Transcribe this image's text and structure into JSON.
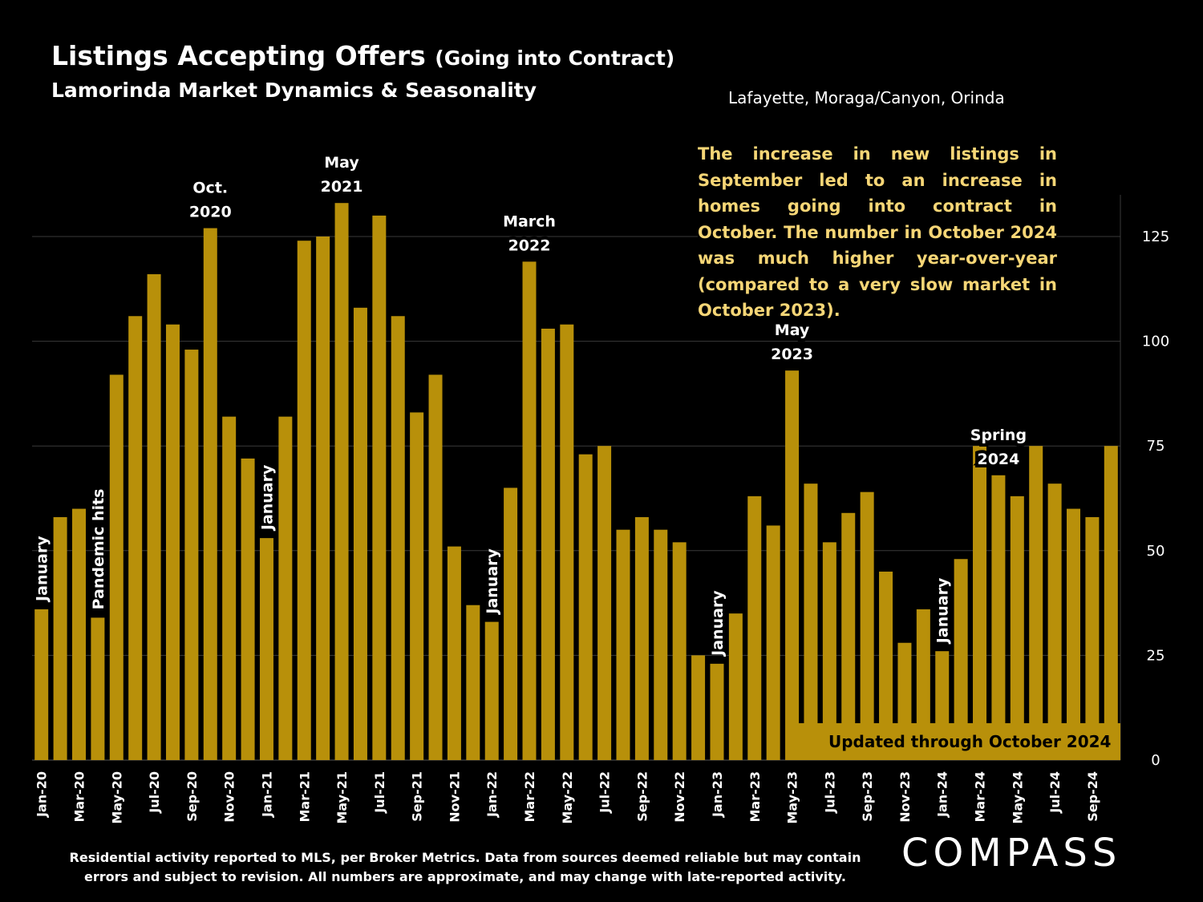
{
  "header": {
    "title": "Listings Accepting Offers",
    "title_suffix": "(Going into Contract)",
    "subtitle": "Lamorinda Market Dynamics & Seasonality",
    "region": "Lafayette, Moraga/Canyon, Orinda"
  },
  "commentary": "The increase in new listings in September led to an increase in homes going into contract in October. The number in October 2024 was much higher year-over-year (compared to a very slow market in October 2023).",
  "updated_note": "Updated through October 2024",
  "footnote_lines": [
    "Residential activity reported to MLS, per Broker Metrics. Data from sources deemed reliable but may contain",
    "errors and subject to revision. All numbers are approximate, and may change with late-reported activity."
  ],
  "logo": "COMPASS",
  "colors": {
    "bar": "#b8900a",
    "background": "#000000",
    "commentary": "#f6d676",
    "grid": "#3a3a3a"
  },
  "chart_data": {
    "type": "bar",
    "x": [
      "Jan-20",
      "Feb-20",
      "Mar-20",
      "Apr-20",
      "May-20",
      "Jun-20",
      "Jul-20",
      "Aug-20",
      "Sep-20",
      "Oct-20",
      "Nov-20",
      "Dec-20",
      "Jan-21",
      "Feb-21",
      "Mar-21",
      "Apr-21",
      "May-21",
      "Jun-21",
      "Jul-21",
      "Aug-21",
      "Sep-21",
      "Oct-21",
      "Nov-21",
      "Dec-21",
      "Jan-22",
      "Feb-22",
      "Mar-22",
      "Apr-22",
      "May-22",
      "Jun-22",
      "Jul-22",
      "Aug-22",
      "Sep-22",
      "Oct-22",
      "Nov-22",
      "Dec-22",
      "Jan-23",
      "Feb-23",
      "Mar-23",
      "Apr-23",
      "May-23",
      "Jun-23",
      "Jul-23",
      "Aug-23",
      "Sep-23",
      "Oct-23",
      "Nov-23",
      "Dec-23",
      "Jan-24",
      "Feb-24",
      "Mar-24",
      "Apr-24",
      "May-24",
      "Jun-24",
      "Jul-24",
      "Aug-24",
      "Sep-24",
      "Oct-24"
    ],
    "values": [
      36,
      58,
      60,
      34,
      92,
      106,
      116,
      104,
      98,
      127,
      82,
      72,
      53,
      82,
      124,
      125,
      133,
      108,
      130,
      106,
      83,
      92,
      51,
      37,
      33,
      65,
      119,
      103,
      104,
      73,
      75,
      55,
      58,
      55,
      52,
      25,
      23,
      35,
      63,
      56,
      93,
      66,
      52,
      59,
      64,
      45,
      28,
      36,
      26,
      48,
      75,
      68,
      63,
      75,
      66,
      60,
      58,
      75
    ],
    "x_tick_labels": [
      "Jan-20",
      "Mar-20",
      "May-20",
      "Jul-20",
      "Sep-20",
      "Nov-20",
      "Jan-21",
      "Mar-21",
      "May-21",
      "Jul-21",
      "Sep-21",
      "Nov-21",
      "Jan-22",
      "Mar-22",
      "May-22",
      "Jul-22",
      "Sep-22",
      "Nov-22",
      "Jan-23",
      "Mar-23",
      "May-23",
      "Jul-23",
      "Sep-23",
      "Nov-23",
      "Jan-24",
      "Mar-24",
      "May-24",
      "Jul-24",
      "Sep-24"
    ],
    "y_ticks": [
      0,
      25,
      50,
      75,
      100,
      125
    ],
    "ylim": [
      0,
      135
    ],
    "y_axis_position": "right",
    "grid": true,
    "annotations": [
      {
        "text": [
          "January"
        ],
        "x": "Jan-20",
        "orientation": "vertical"
      },
      {
        "text": [
          "Pandemic hits"
        ],
        "x": "Apr-20",
        "orientation": "vertical"
      },
      {
        "text": [
          "Oct.",
          "2020"
        ],
        "x": "Oct-20",
        "orientation": "horizontal"
      },
      {
        "text": [
          "January"
        ],
        "x": "Jan-21",
        "orientation": "vertical"
      },
      {
        "text": [
          "May",
          "2021"
        ],
        "x": "May-21",
        "orientation": "horizontal"
      },
      {
        "text": [
          "January"
        ],
        "x": "Jan-22",
        "orientation": "vertical"
      },
      {
        "text": [
          "March",
          "2022"
        ],
        "x": "Mar-22",
        "orientation": "horizontal"
      },
      {
        "text": [
          "January"
        ],
        "x": "Jan-23",
        "orientation": "vertical"
      },
      {
        "text": [
          "May",
          "2023"
        ],
        "x": "May-23",
        "orientation": "horizontal"
      },
      {
        "text": [
          "January"
        ],
        "x": "Jan-24",
        "orientation": "vertical"
      },
      {
        "text": [
          "Spring",
          "2024"
        ],
        "x": "Apr-24",
        "orientation": "horizontal"
      }
    ]
  }
}
